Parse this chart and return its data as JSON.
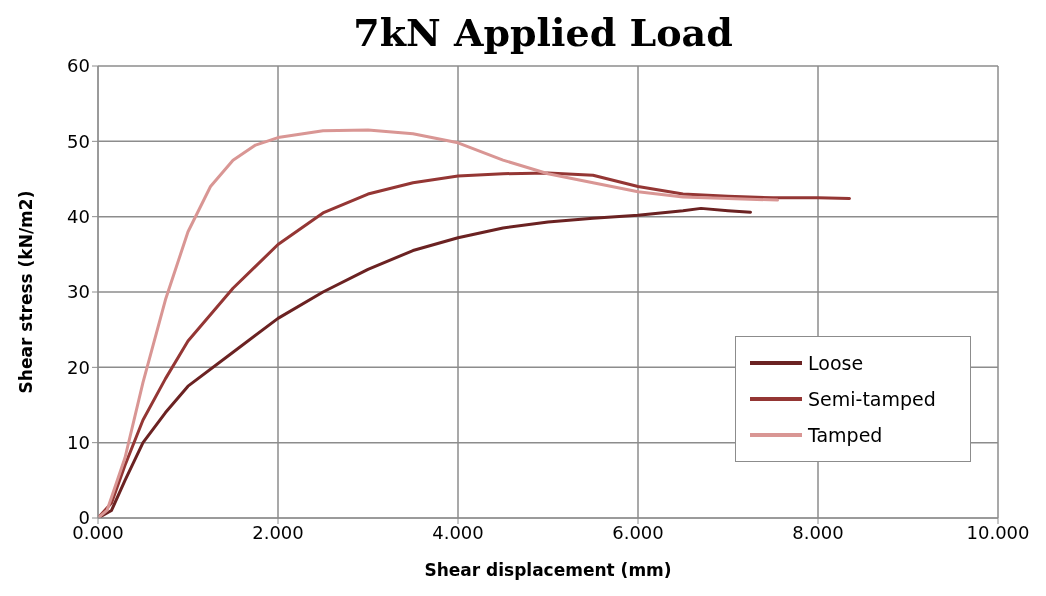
{
  "chart_data": {
    "type": "line",
    "title": "7kN Applied Load",
    "xlabel": "Shear displacement (mm)",
    "ylabel": "Shear stress (kN/m2)",
    "xlim": [
      0,
      10
    ],
    "xticks": [
      {
        "value": 0,
        "label": "0.000"
      },
      {
        "value": 2,
        "label": "2.000"
      },
      {
        "value": 4,
        "label": "4.000"
      },
      {
        "value": 6,
        "label": "6.000"
      },
      {
        "value": 8,
        "label": "8.000"
      },
      {
        "value": 10,
        "label": "10.000"
      }
    ],
    "ylim": [
      0,
      60
    ],
    "yticks": [
      0,
      10,
      20,
      30,
      40,
      50,
      60
    ],
    "grid": true,
    "legend": "bottom right",
    "marker": "none",
    "line_style": "solid",
    "series": [
      {
        "name": "Loose",
        "color": "#6b2222",
        "x": [
          0,
          0.15,
          0.3,
          0.5,
          0.75,
          1,
          1.5,
          2,
          2.5,
          3,
          3.5,
          4,
          4.5,
          5,
          5.5,
          6,
          6.5,
          6.7,
          7,
          7.25
        ],
        "values": [
          0,
          1,
          5,
          10,
          14,
          17.5,
          22,
          26.5,
          30,
          33,
          35.5,
          37.2,
          38.5,
          39.3,
          39.8,
          40.2,
          40.8,
          41.1,
          40.8,
          40.6
        ]
      },
      {
        "name": "Semi-tamped",
        "color": "#943634",
        "x": [
          0,
          0.15,
          0.3,
          0.5,
          0.75,
          1,
          1.5,
          2,
          2.5,
          3,
          3.5,
          4,
          4.5,
          5,
          5.5,
          6,
          6.5,
          7,
          7.5,
          8,
          8.35
        ],
        "values": [
          0,
          2,
          7,
          13,
          18.5,
          23.5,
          30.5,
          36.3,
          40.5,
          43,
          44.5,
          45.4,
          45.7,
          45.8,
          45.5,
          44,
          43,
          42.7,
          42.5,
          42.5,
          42.4
        ]
      },
      {
        "name": "Tamped",
        "color": "#d99694",
        "x": [
          0,
          0.1,
          0.3,
          0.5,
          0.75,
          1,
          1.25,
          1.5,
          1.75,
          2,
          2.5,
          3,
          3.5,
          4,
          4.5,
          5,
          5.5,
          6,
          6.5,
          7,
          7.55
        ],
        "values": [
          0,
          1,
          8,
          18,
          29,
          38,
          44,
          47.5,
          49.5,
          50.5,
          51.4,
          51.5,
          51,
          49.8,
          47.5,
          45.7,
          44.5,
          43.3,
          42.6,
          42.4,
          42.2
        ]
      }
    ]
  }
}
